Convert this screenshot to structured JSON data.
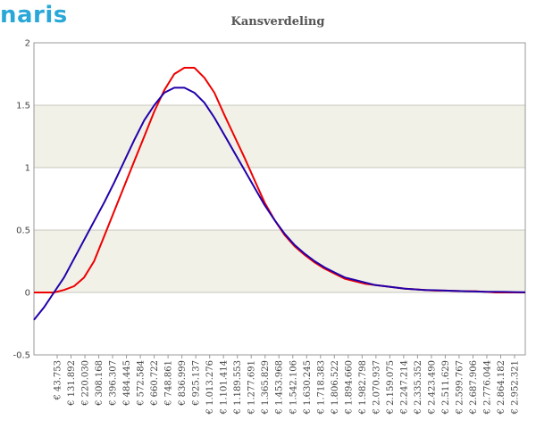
{
  "logo_text": "naris",
  "colors": {
    "band": "#f1f1e8",
    "grid": "#c8c8c0",
    "series_empirical": "#ee0000",
    "series_fit": "#2200aa"
  },
  "chart_data": {
    "type": "line",
    "title": "Kansverdeling",
    "xlabel": "",
    "ylabel": "",
    "ylim": [
      -0.5,
      2
    ],
    "yticks": [
      -0.5,
      0,
      0.5,
      1,
      1.5,
      2
    ],
    "ytick_labels": [
      "-0.5",
      "0",
      "0.5",
      "1",
      "1.5",
      "2"
    ],
    "bands": [
      [
        0,
        0.5
      ],
      [
        1,
        1.5
      ]
    ],
    "grid": true,
    "legend": "none",
    "x_tick_labels": [
      "€ 43.753",
      "€ 131.892",
      "€ 220.030",
      "€ 308.168",
      "€ 396.307",
      "€ 484.445",
      "€ 572.584",
      "€ 660.722",
      "€ 748.861",
      "€ 836.999",
      "€ 925.137",
      "€ 1.013.276",
      "€ 1.101.414",
      "€ 1.189.553",
      "€ 1.277.691",
      "€ 1.365.829",
      "€ 1.453.968",
      "€ 1.542.106",
      "€ 1.630.245",
      "€ 1.718.383",
      "€ 1.806.522",
      "€ 1.894.660",
      "€ 1.982.798",
      "€ 2.070.937",
      "€ 2.159.075",
      "€ 2.247.214",
      "€ 2.335.352",
      "€ 2.423.490",
      "€ 2.511.629",
      "€ 2.599.767",
      "€ 2.687.906",
      "€ 2.776.044",
      "€ 2.864.182",
      "€ 2.952.321"
    ],
    "series": [
      {
        "values": [
          0,
          0,
          0,
          0.02,
          0.05,
          0.12,
          0.25,
          0.45,
          0.65,
          0.85,
          1.05,
          1.25,
          1.45,
          1.62,
          1.75,
          1.8,
          1.8,
          1.72,
          1.6,
          1.42,
          1.25,
          1.08,
          0.9,
          0.72,
          0.58,
          0.46,
          0.37,
          0.3,
          0.24,
          0.19,
          0.15,
          0.11,
          0.09,
          0.07,
          0.06,
          0.05,
          0.04,
          0.03,
          0.025,
          0.02,
          0.015,
          0.015,
          0.012,
          0.01,
          0.01,
          0.005,
          0,
          0,
          0,
          0
        ]
      },
      {
        "values": [
          -0.22,
          -0.12,
          0,
          0.12,
          0.27,
          0.42,
          0.57,
          0.72,
          0.88,
          1.05,
          1.22,
          1.38,
          1.5,
          1.6,
          1.64,
          1.64,
          1.6,
          1.52,
          1.4,
          1.26,
          1.12,
          0.98,
          0.84,
          0.7,
          0.58,
          0.47,
          0.38,
          0.31,
          0.25,
          0.2,
          0.16,
          0.12,
          0.1,
          0.08,
          0.06,
          0.05,
          0.04,
          0.03,
          0.025,
          0.02,
          0.018,
          0.015,
          0.012,
          0.01,
          0.008,
          0.006,
          0.005,
          0.004,
          0.003,
          0.002
        ]
      }
    ]
  }
}
